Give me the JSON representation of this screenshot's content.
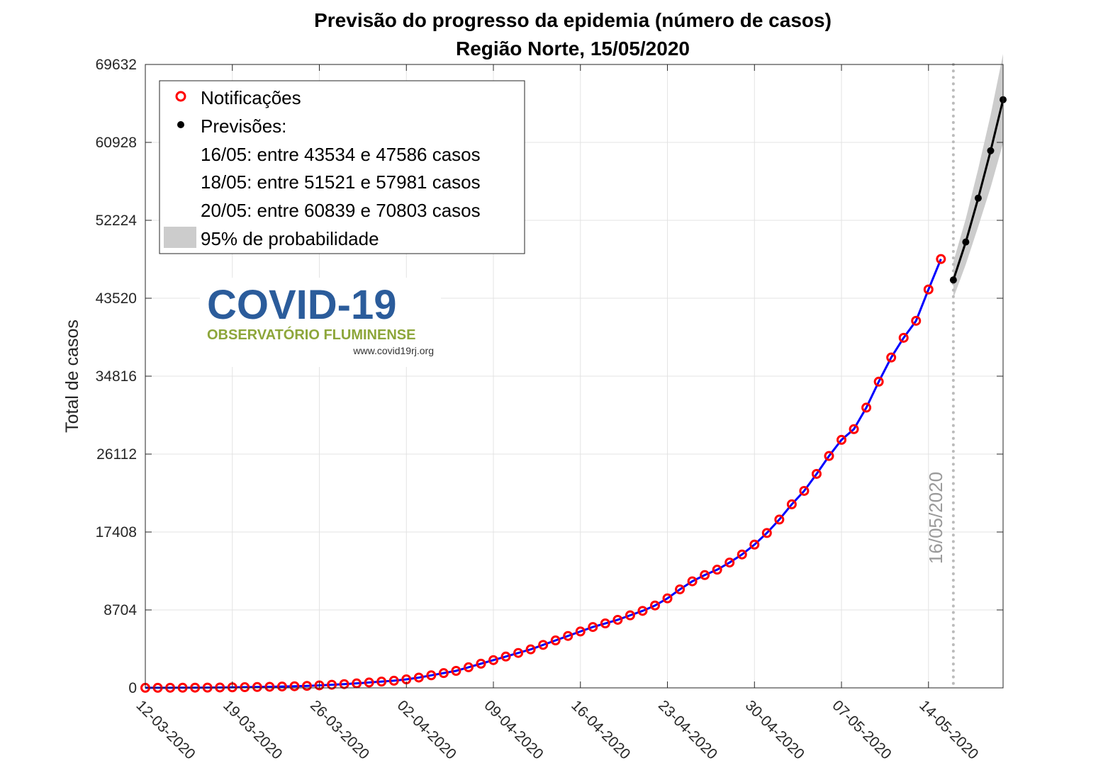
{
  "chart_data": {
    "type": "line",
    "title": "Previsão do progresso da epidemia (número de casos)",
    "subtitle": "Região Norte, 15/05/2020",
    "ylabel": "Total de casos",
    "xlabel": "",
    "ylim": [
      0,
      69632
    ],
    "yticks": [
      0,
      8704,
      17408,
      26112,
      34816,
      43520,
      52224,
      60928,
      69632
    ],
    "xlim": [
      "2020-03-12",
      "2020-05-20"
    ],
    "xticks": [
      "12-03-2020",
      "19-03-2020",
      "26-03-2020",
      "02-04-2020",
      "09-04-2020",
      "16-04-2020",
      "23-04-2020",
      "30-04-2020",
      "07-05-2020",
      "14-05-2020"
    ],
    "grid": true,
    "legend_position": "top-left",
    "vline": {
      "date": "2020-05-16",
      "label": "16/05/2020"
    },
    "series": [
      {
        "name": "Notificações",
        "kind": "observed",
        "dates": [
          "2020-03-12",
          "2020-03-13",
          "2020-03-14",
          "2020-03-15",
          "2020-03-16",
          "2020-03-17",
          "2020-03-18",
          "2020-03-19",
          "2020-03-20",
          "2020-03-21",
          "2020-03-22",
          "2020-03-23",
          "2020-03-24",
          "2020-03-25",
          "2020-03-26",
          "2020-03-27",
          "2020-03-28",
          "2020-03-29",
          "2020-03-30",
          "2020-03-31",
          "2020-04-01",
          "2020-04-02",
          "2020-04-03",
          "2020-04-04",
          "2020-04-05",
          "2020-04-06",
          "2020-04-07",
          "2020-04-08",
          "2020-04-09",
          "2020-04-10",
          "2020-04-11",
          "2020-04-12",
          "2020-04-13",
          "2020-04-14",
          "2020-04-15",
          "2020-04-16",
          "2020-04-17",
          "2020-04-18",
          "2020-04-19",
          "2020-04-20",
          "2020-04-21",
          "2020-04-22",
          "2020-04-23",
          "2020-04-24",
          "2020-04-25",
          "2020-04-26",
          "2020-04-27",
          "2020-04-28",
          "2020-04-29",
          "2020-04-30",
          "2020-05-01",
          "2020-05-02",
          "2020-05-03",
          "2020-05-04",
          "2020-05-05",
          "2020-05-06",
          "2020-05-07",
          "2020-05-08",
          "2020-05-09",
          "2020-05-10",
          "2020-05-11",
          "2020-05-12",
          "2020-05-13",
          "2020-05-14",
          "2020-05-15"
        ],
        "values": [
          5,
          8,
          12,
          18,
          22,
          30,
          42,
          60,
          75,
          95,
          120,
          150,
          180,
          220,
          280,
          350,
          420,
          500,
          600,
          700,
          800,
          950,
          1150,
          1400,
          1650,
          1900,
          2300,
          2700,
          3100,
          3500,
          3900,
          4300,
          4800,
          5300,
          5800,
          6300,
          6800,
          7200,
          7600,
          8100,
          8600,
          9200,
          10000,
          11000,
          11900,
          12600,
          13200,
          14000,
          14900,
          16000,
          17300,
          18800,
          20500,
          22000,
          23900,
          25900,
          27700,
          28900,
          31300,
          34200,
          36900,
          39100,
          41000,
          44500,
          47900
        ]
      },
      {
        "name": "Previsões:",
        "kind": "forecast",
        "dates": [
          "2020-05-16",
          "2020-05-17",
          "2020-05-18",
          "2020-05-19",
          "2020-05-20"
        ],
        "values": [
          45560,
          49800,
          54700,
          60000,
          65700
        ],
        "lower": [
          43534,
          47300,
          51521,
          55900,
          60839
        ],
        "upper": [
          47586,
          52400,
          57981,
          64000,
          70803
        ]
      }
    ]
  },
  "legend": {
    "observed": "Notificações",
    "forecast": "Previsões:",
    "lines": [
      "16/05: entre 43534 e 47586 casos",
      "18/05: entre 51521 e 57981 casos",
      "20/05: entre 60839 e 70803 casos"
    ],
    "band": "95% de probabilidade"
  },
  "logo": {
    "title": "COVID-19",
    "subtitle": "OBSERVATÓRIO FLUMINENSE",
    "url": "www.covid19rj.org"
  },
  "colors": {
    "observed_line": "#0000ff",
    "observed_marker": "#ff0000",
    "forecast": "#000000",
    "band": "#cccccc",
    "vline": "#bbbbbb",
    "logo_blue": "#2b5c9b",
    "logo_green": "#8da63a"
  }
}
